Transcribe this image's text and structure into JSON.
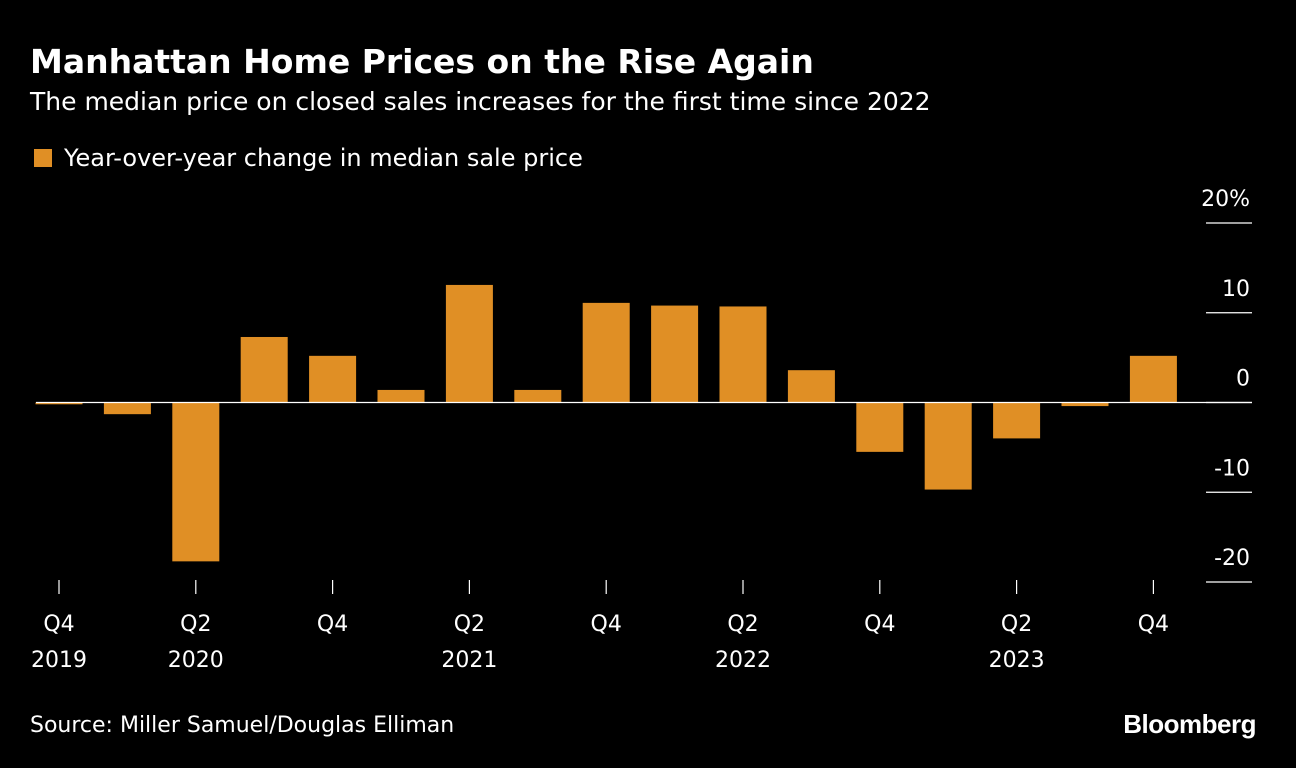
{
  "colors": {
    "background": "#000000",
    "text": "#ffffff",
    "bar": "#e08f25",
    "axis": "#ffffff"
  },
  "brand": "Bloomberg",
  "source": "Source: Miller Samuel/Douglas Elliman",
  "chart_data": {
    "type": "bar",
    "title": "Manhattan Home Prices on the Rise Again",
    "subtitle": "The median price on closed sales increases for the first time since 2022",
    "legend": [
      {
        "label": "Year-over-year change in median sale price",
        "color": "#e08f25"
      }
    ],
    "legend_position": "top-left",
    "categories": [
      "Q4 2019",
      "Q1 2020",
      "Q2 2020",
      "Q3 2020",
      "Q4 2020",
      "Q1 2021",
      "Q2 2021",
      "Q3 2021",
      "Q4 2021",
      "Q1 2022",
      "Q2 2022",
      "Q3 2022",
      "Q4 2022",
      "Q1 2023",
      "Q2 2023",
      "Q3 2023",
      "Q4 2023"
    ],
    "series": [
      {
        "name": "Year-over-year change in median sale price",
        "values": [
          -0.2,
          -1.3,
          -17.7,
          7.3,
          5.2,
          1.4,
          13.1,
          1.4,
          11.1,
          10.8,
          10.7,
          3.6,
          -5.5,
          -9.7,
          -4.0,
          -0.4,
          5.2
        ]
      }
    ],
    "x_ticks": [
      {
        "category": "Q4 2019",
        "line1": "Q4",
        "line2": "2019"
      },
      {
        "category": "Q2 2020",
        "line1": "Q2",
        "line2": "2020"
      },
      {
        "category": "Q4 2020",
        "line1": "Q4",
        "line2": ""
      },
      {
        "category": "Q2 2021",
        "line1": "Q2",
        "line2": "2021"
      },
      {
        "category": "Q4 2021",
        "line1": "Q4",
        "line2": ""
      },
      {
        "category": "Q2 2022",
        "line1": "Q2",
        "line2": "2022"
      },
      {
        "category": "Q4 2022",
        "line1": "Q4",
        "line2": ""
      },
      {
        "category": "Q2 2023",
        "line1": "Q2",
        "line2": "2023"
      },
      {
        "category": "Q4 2023",
        "line1": "Q4",
        "line2": ""
      }
    ],
    "y_ticks": [
      {
        "value": 20,
        "label": "20%"
      },
      {
        "value": 10,
        "label": "10"
      },
      {
        "value": 0,
        "label": "0"
      },
      {
        "value": -10,
        "label": "-10"
      },
      {
        "value": -20,
        "label": "-20"
      }
    ],
    "ylim": [
      -20,
      20
    ],
    "y_axis_side": "right",
    "grid": false
  }
}
